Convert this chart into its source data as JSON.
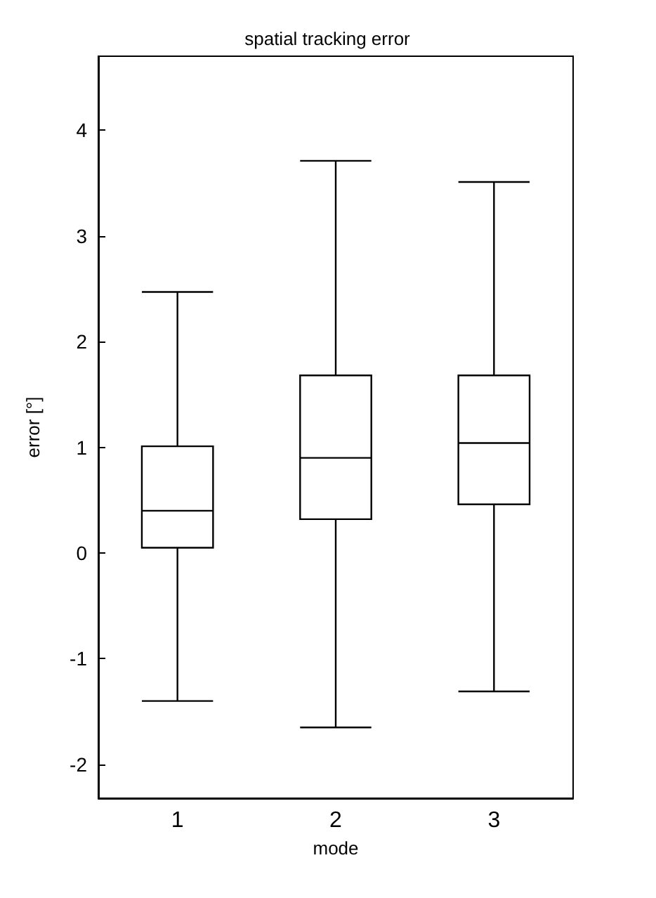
{
  "chart_data": {
    "type": "box",
    "title": "spatial tracking error",
    "xlabel": "mode",
    "ylabel": "error [°]",
    "categories": [
      "1",
      "2",
      "3"
    ],
    "boxes": [
      {
        "low": -1.4,
        "q1": 0.05,
        "median": 0.4,
        "q3": 1.01,
        "high": 2.47
      },
      {
        "low": -1.65,
        "q1": 0.32,
        "median": 0.9,
        "q3": 1.68,
        "high": 3.71
      },
      {
        "low": -1.31,
        "q1": 0.46,
        "median": 1.04,
        "q3": 1.68,
        "high": 3.51
      }
    ],
    "color": "#000000",
    "ylim": [
      -2.32,
      4.7
    ],
    "yticks": [
      -2,
      -1,
      0,
      1,
      2,
      3,
      4
    ],
    "grid": false
  }
}
